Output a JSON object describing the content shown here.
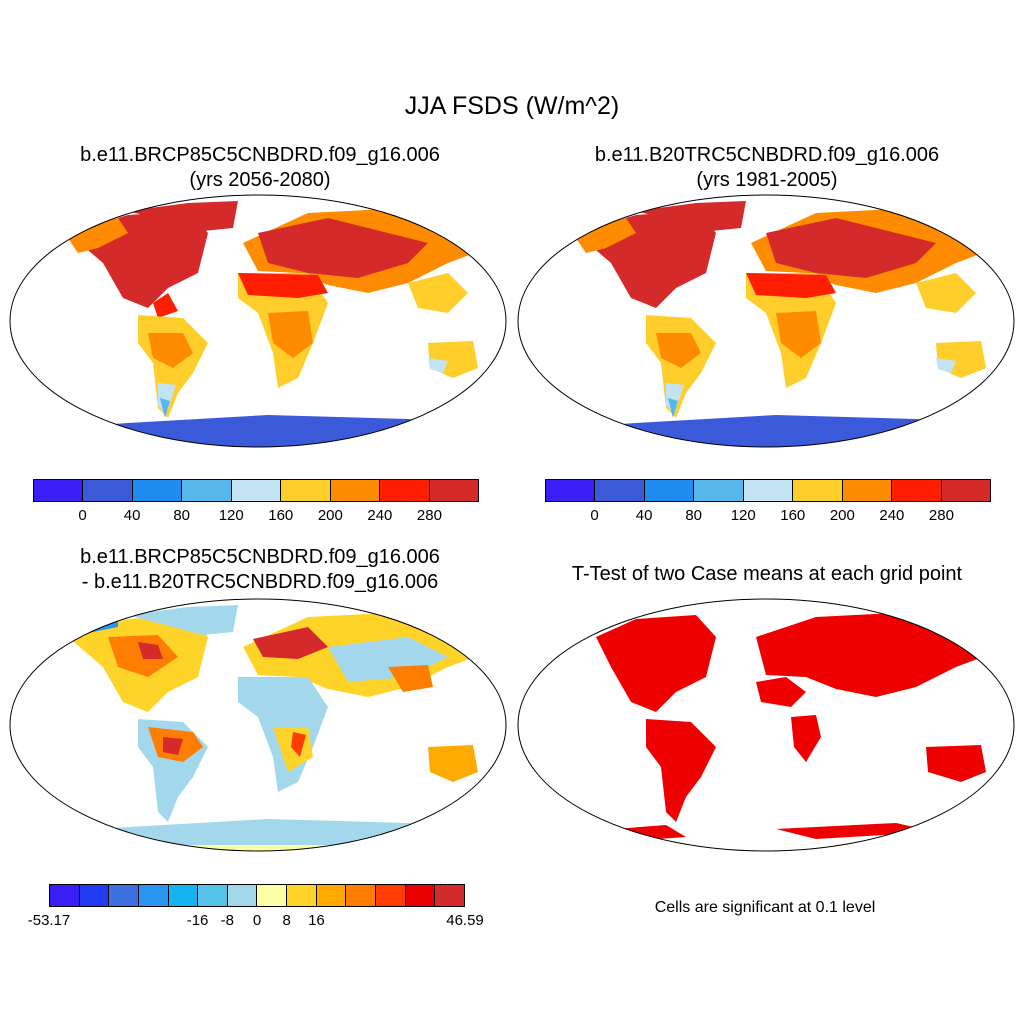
{
  "figure": {
    "title": "JJA FSDS (W/m^2)"
  },
  "panels": {
    "top_left": {
      "title_line1": "b.e11.BRCP85C5CNBDRD.f09_g16.006",
      "title_line2": "(yrs 2056-2080)"
    },
    "top_right": {
      "title_line1": "b.e11.B20TRC5CNBDRD.f09_g16.006",
      "title_line2": "(yrs 1981-2005)"
    },
    "bottom_left": {
      "title_line1": "b.e11.BRCP85C5CNBDRD.f09_g16.006",
      "title_line2": "- b.e11.B20TRC5CNBDRD.f09_g16.006"
    },
    "bottom_right": {
      "title": "T-Test of two Case means at each grid point",
      "note": "Cells are significant at 0.1 level"
    }
  },
  "colorbars": {
    "absolute": {
      "colors": [
        "#3b1ef5",
        "#3a5ad9",
        "#1e8cf0",
        "#55b7ea",
        "#c3e3f5",
        "#ffce2b",
        "#ff8c00",
        "#ff1e00",
        "#d42a2a"
      ],
      "tick_labels": [
        "0",
        "40",
        "80",
        "120",
        "160",
        "200",
        "240",
        "280"
      ]
    },
    "difference": {
      "colors": [
        "#3a1ef5",
        "#1f3cf2",
        "#3c6fe0",
        "#2a96f0",
        "#14b4ef",
        "#55c3ea",
        "#a3d8ec",
        "#ffffa6",
        "#ffd429",
        "#ffaa00",
        "#ff7d00",
        "#ff3c00",
        "#e60000",
        "#d42a2a"
      ],
      "tick_labels": [
        "-53.17",
        "-16",
        "-8",
        "0",
        "8",
        "16",
        "46.59"
      ]
    },
    "significance_color": "#ee0000"
  }
}
